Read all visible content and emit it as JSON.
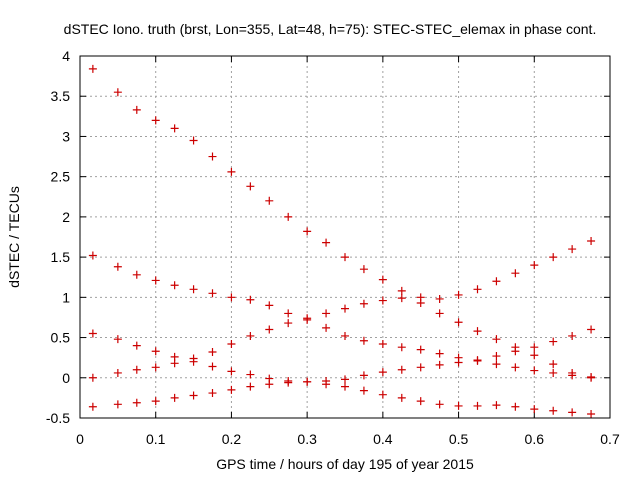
{
  "chart_data": {
    "type": "scatter",
    "title": "dSTEC Iono. truth (brst, Lon=355, Lat=48, h=75): STEC-STEC_elemax in phase cont.",
    "xlabel": "GPS time / hours of day 195 of year 2015",
    "ylabel": "dSTEC  / TECUs",
    "xlim": [
      0,
      0.7
    ],
    "ylim": [
      -0.5,
      4
    ],
    "xticks": [
      0,
      0.1,
      0.2,
      0.3,
      0.4,
      0.5,
      0.6,
      0.7
    ],
    "xtick_labels": [
      "0",
      "0.1",
      "0.2",
      "0.3",
      "0.4",
      "0.5",
      "0.6",
      "0.7"
    ],
    "yticks": [
      -0.5,
      0,
      0.5,
      1,
      1.5,
      2,
      2.5,
      3,
      3.5,
      4
    ],
    "ytick_labels": [
      "-0.5",
      "0",
      "0.5",
      "1",
      "1.5",
      "2",
      "2.5",
      "3",
      "3.5",
      "4"
    ],
    "grid": true,
    "marker": "plus",
    "color": "#cc0000",
    "series": [
      {
        "x": [
          0.017,
          0.05,
          0.075,
          0.1,
          0.125,
          0.15,
          0.175,
          0.2,
          0.225,
          0.25,
          0.275,
          0.3,
          0.325,
          0.35,
          0.375,
          0.4,
          0.425,
          0.45,
          0.475,
          0.5,
          0.525,
          0.55,
          0.575,
          0.6,
          0.625,
          0.65,
          0.675
        ],
        "y": [
          3.84,
          3.55,
          3.33,
          3.2,
          3.1,
          2.95,
          2.75,
          2.56,
          2.38,
          2.2,
          2.0,
          1.82,
          1.68,
          1.5,
          1.35,
          1.22,
          1.08,
          0.93,
          0.8,
          0.69,
          0.58,
          0.48,
          0.38,
          0.28,
          0.17,
          0.06,
          0.0
        ]
      },
      {
        "x": [
          0.017,
          0.05,
          0.075,
          0.1,
          0.125,
          0.15,
          0.175,
          0.2,
          0.225,
          0.25,
          0.275,
          0.3,
          0.325,
          0.35,
          0.375,
          0.4,
          0.425,
          0.45,
          0.475,
          0.5,
          0.525,
          0.55,
          0.575,
          0.6,
          0.625,
          0.65,
          0.675
        ],
        "y": [
          1.52,
          1.38,
          1.28,
          1.21,
          1.15,
          1.1,
          1.05,
          1.0,
          0.97,
          0.9,
          0.8,
          0.72,
          0.62,
          0.52,
          0.46,
          0.42,
          0.38,
          0.35,
          0.3,
          0.25,
          0.21,
          0.17,
          0.13,
          0.09,
          0.06,
          0.03,
          0.01
        ]
      },
      {
        "x": [
          0.017,
          0.05,
          0.075,
          0.1,
          0.125,
          0.15,
          0.175,
          0.2,
          0.225,
          0.25,
          0.275,
          0.3,
          0.325,
          0.35,
          0.375,
          0.4,
          0.425,
          0.45,
          0.475,
          0.5,
          0.525,
          0.55,
          0.575,
          0.6,
          0.625,
          0.65,
          0.675
        ],
        "y": [
          0.55,
          0.48,
          0.4,
          0.33,
          0.26,
          0.2,
          0.14,
          0.08,
          0.04,
          -0.01,
          -0.04,
          -0.05,
          -0.04,
          -0.02,
          0.03,
          0.07,
          0.1,
          0.13,
          0.16,
          0.19,
          0.22,
          0.27,
          0.33,
          0.38,
          0.45,
          0.52,
          0.6
        ]
      },
      {
        "x": [
          0.017,
          0.05,
          0.075,
          0.1,
          0.125,
          0.15,
          0.175,
          0.2,
          0.225,
          0.25,
          0.275,
          0.3,
          0.325,
          0.35,
          0.375,
          0.4,
          0.425,
          0.45,
          0.475,
          0.5,
          0.525,
          0.55,
          0.575,
          0.6,
          0.625,
          0.65,
          0.675
        ],
        "y": [
          0.0,
          0.06,
          0.1,
          0.13,
          0.18,
          0.24,
          0.32,
          0.42,
          0.52,
          0.6,
          0.68,
          0.74,
          0.8,
          0.86,
          0.92,
          0.96,
          0.99,
          1.0,
          0.98,
          1.03,
          1.1,
          1.2,
          1.3,
          1.4,
          1.5,
          1.6,
          1.7
        ]
      },
      {
        "x": [
          0.017,
          0.05,
          0.075,
          0.1,
          0.125,
          0.15,
          0.175,
          0.2,
          0.225,
          0.25,
          0.275,
          0.3,
          0.325,
          0.35,
          0.375,
          0.4,
          0.425,
          0.45,
          0.475,
          0.5,
          0.525,
          0.55,
          0.575,
          0.6,
          0.625,
          0.65,
          0.675
        ],
        "y": [
          -0.36,
          -0.33,
          -0.31,
          -0.29,
          -0.25,
          -0.22,
          -0.19,
          -0.15,
          -0.11,
          -0.08,
          -0.06,
          -0.05,
          -0.08,
          -0.11,
          -0.16,
          -0.21,
          -0.25,
          -0.29,
          -0.33,
          -0.35,
          -0.35,
          -0.34,
          -0.36,
          -0.39,
          -0.41,
          -0.43,
          -0.45
        ]
      }
    ]
  }
}
